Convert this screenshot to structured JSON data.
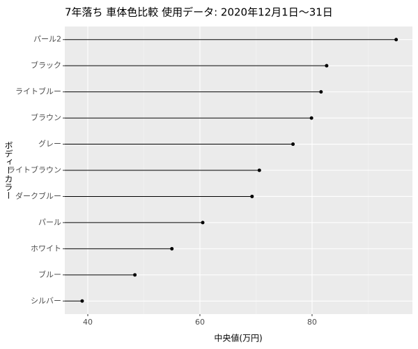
{
  "chart_data": {
    "type": "lollipop",
    "title": "7年落ち 車体色比較 使用データ: 2020年12月1日～31日",
    "x_label": "中央値(万円)",
    "y_label": "ボディーカラー",
    "categories": [
      "パール2",
      "ブラック",
      "ライトブルー",
      "ブラウン",
      "グレー",
      "ライトブラウン",
      "ダークブルー",
      "パール",
      "ホワイト",
      "ブルー",
      "シルバー"
    ],
    "values": [
      95.0,
      82.6,
      81.6,
      79.9,
      76.6,
      70.6,
      69.3,
      60.5,
      55.0,
      48.4,
      39.0
    ],
    "color": "#000000",
    "xlim": [
      35.9,
      97.9
    ],
    "xticks": [
      40,
      60,
      80
    ],
    "x_minor_ticks": [
      50,
      70,
      90
    ],
    "grid": true
  }
}
